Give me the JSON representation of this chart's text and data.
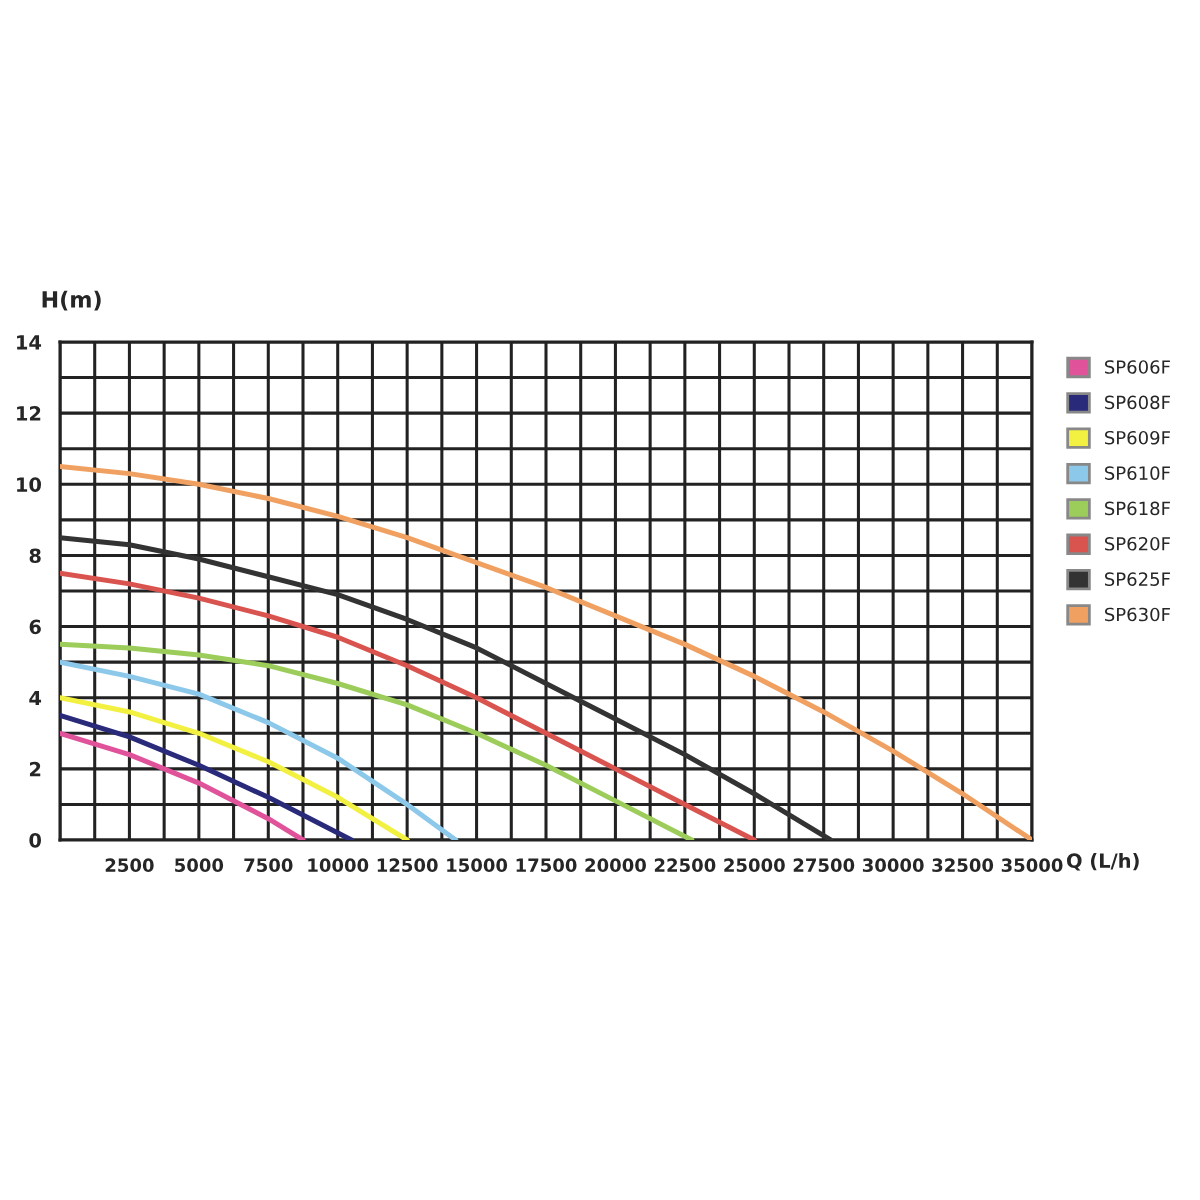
{
  "chart_data": {
    "type": "line",
    "ylabel": "H(m)",
    "xlabel": "Q (L/h)",
    "xlim": [
      0,
      35000
    ],
    "ylim": [
      0,
      14
    ],
    "xticks": [
      {
        "value": 0,
        "label": null
      },
      {
        "value": 1250,
        "label": null
      },
      2500,
      {
        "value": 3750,
        "label": null
      },
      5000,
      {
        "value": 6250,
        "label": null
      },
      7500,
      {
        "value": 8750,
        "label": null
      },
      10000,
      {
        "value": 11250,
        "label": null
      },
      12500,
      {
        "value": 13750,
        "label": null
      },
      15000,
      {
        "value": 16250,
        "label": null
      },
      17500,
      {
        "value": 18750,
        "label": null
      },
      20000,
      {
        "value": 21250,
        "label": null
      },
      22500,
      {
        "value": 23750,
        "label": null
      },
      25000,
      {
        "value": 26250,
        "label": null
      },
      27500,
      {
        "value": 28750,
        "label": null
      },
      30000,
      {
        "value": 31250,
        "label": null
      },
      32500,
      {
        "value": 33750,
        "label": null
      },
      35000
    ],
    "yticks": [
      0,
      {
        "value": 1,
        "label": null
      },
      2,
      {
        "value": 3,
        "label": null
      },
      4,
      {
        "value": 5,
        "label": null
      },
      6,
      {
        "value": 7,
        "label": null
      },
      8,
      {
        "value": 9,
        "label": null
      },
      10,
      {
        "value": 11,
        "label": null
      },
      12,
      {
        "value": 13,
        "label": null
      },
      14
    ],
    "grid": true,
    "legend": "right",
    "marker": "none",
    "line_style": "solid",
    "series": [
      {
        "name": "SP606F",
        "color": "#e0529a",
        "x": [
          0,
          2500,
          5000,
          7500,
          8750
        ],
        "values": [
          3.0,
          2.4,
          1.6,
          0.6,
          0
        ]
      },
      {
        "name": "SP608F",
        "color": "#2a2a7a",
        "x": [
          0,
          2500,
          5000,
          7500,
          10500
        ],
        "values": [
          3.5,
          2.9,
          2.1,
          1.2,
          0
        ]
      },
      {
        "name": "SP609F",
        "color": "#f2f040",
        "x": [
          0,
          2500,
          5000,
          7500,
          10000,
          12500
        ],
        "values": [
          4.0,
          3.6,
          3.0,
          2.2,
          1.2,
          0
        ]
      },
      {
        "name": "SP610F",
        "color": "#8cc8ea",
        "x": [
          0,
          2500,
          5000,
          7500,
          10000,
          12500,
          14250
        ],
        "values": [
          5.0,
          4.6,
          4.1,
          3.3,
          2.3,
          1.0,
          0
        ]
      },
      {
        "name": "SP618F",
        "color": "#9ccc5a",
        "x": [
          0,
          2500,
          5000,
          7500,
          10000,
          12500,
          15000,
          17500,
          20000,
          22750
        ],
        "values": [
          5.5,
          5.4,
          5.2,
          4.9,
          4.4,
          3.8,
          3.0,
          2.1,
          1.1,
          0
        ]
      },
      {
        "name": "SP620F",
        "color": "#d9534f",
        "x": [
          0,
          2500,
          5000,
          7500,
          10000,
          12500,
          15000,
          17500,
          20000,
          22500,
          25000
        ],
        "values": [
          7.5,
          7.2,
          6.8,
          6.3,
          5.7,
          4.9,
          4.0,
          3.0,
          2.0,
          1.0,
          0
        ]
      },
      {
        "name": "SP625F",
        "color": "#333333",
        "x": [
          0,
          2500,
          5000,
          7500,
          10000,
          12500,
          15000,
          17500,
          20000,
          22500,
          25000,
          27750
        ],
        "values": [
          8.5,
          8.3,
          7.9,
          7.4,
          6.9,
          6.2,
          5.4,
          4.4,
          3.4,
          2.4,
          1.3,
          0
        ]
      },
      {
        "name": "SP630F",
        "color": "#f0a060",
        "x": [
          0,
          2500,
          5000,
          7500,
          10000,
          12500,
          15000,
          17500,
          20000,
          22500,
          25000,
          27500,
          30000,
          32500,
          35000
        ],
        "values": [
          10.5,
          10.3,
          10.0,
          9.6,
          9.1,
          8.5,
          7.8,
          7.1,
          6.3,
          5.5,
          4.6,
          3.6,
          2.5,
          1.3,
          0
        ]
      }
    ]
  }
}
